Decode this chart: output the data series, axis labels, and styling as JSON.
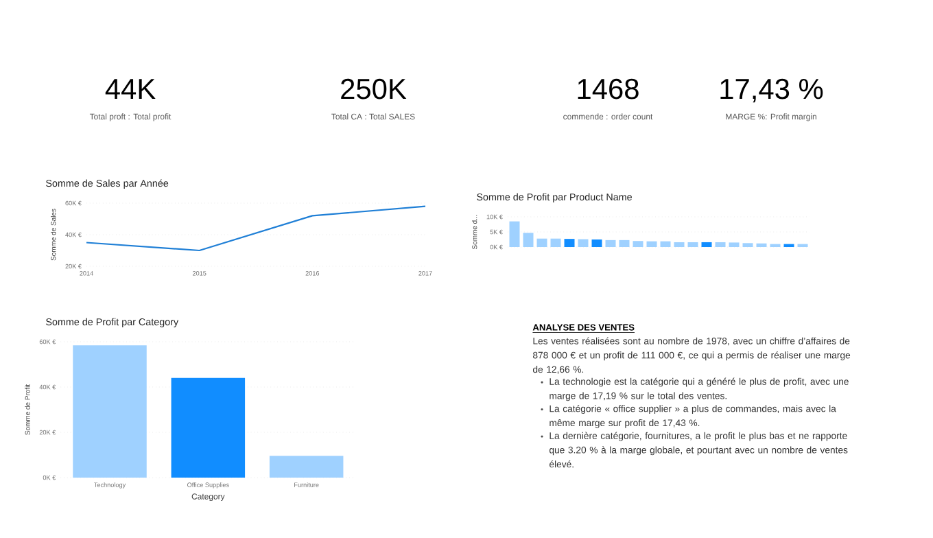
{
  "chart_data": [
    {
      "type": "other",
      "annotations": [
        "44K",
        "Total proft : Total profit",
        "250K",
        "Total CA : Total SALES",
        "1468",
        "commende : order count",
        "17,43 %",
        "MARGE %: Profit margin"
      ]
    },
    {
      "type": "line",
      "title": "Somme de Sales par Année",
      "ylabel": "Somme de Sales",
      "categories": [
        "2014",
        "2015",
        "2016",
        "2017"
      ],
      "values": [
        35000,
        30000,
        52000,
        58000
      ],
      "color": "#1f7fd6",
      "ylim": [
        20000,
        60000
      ],
      "yticks": [
        {
          "value": 20000,
          "label": "20K €"
        },
        {
          "value": 40000,
          "label": "40K €"
        },
        {
          "value": 60000,
          "label": "60K €"
        }
      ],
      "grid": "y",
      "marker": "none",
      "line_style": "solid"
    },
    {
      "type": "bar",
      "title": "Somme de Profit par Product Name",
      "ylabel": "Somme d...",
      "categories": [
        null,
        null,
        null,
        null,
        null,
        null,
        null,
        null,
        null,
        null,
        null,
        null,
        null,
        null,
        null,
        null,
        null,
        null,
        null,
        null,
        null,
        null
      ],
      "values": [
        8500,
        4700,
        2800,
        2800,
        2700,
        2600,
        2500,
        2300,
        2300,
        2000,
        1900,
        1900,
        1600,
        1600,
        1600,
        1600,
        1500,
        1300,
        1200,
        1000,
        1000,
        1000
      ],
      "colors": [
        "#9fd1ff",
        "#9fd1ff",
        "#9fd1ff",
        "#9fd1ff",
        "#118dff",
        "#9fd1ff",
        "#118dff",
        "#9fd1ff",
        "#9fd1ff",
        "#9fd1ff",
        "#9fd1ff",
        "#9fd1ff",
        "#9fd1ff",
        "#9fd1ff",
        "#118dff",
        "#9fd1ff",
        "#9fd1ff",
        "#9fd1ff",
        "#9fd1ff",
        "#9fd1ff",
        "#118dff",
        "#9fd1ff"
      ],
      "ylim": [
        0,
        10000
      ],
      "yticks": [
        {
          "value": 0,
          "label": "0K €"
        },
        {
          "value": 5000,
          "label": "5K €"
        },
        {
          "value": 10000,
          "label": "10K €"
        }
      ],
      "grid": "y"
    },
    {
      "type": "bar",
      "title": "Somme de Profit par Category",
      "xlabel": "Category",
      "ylabel": "Somme de Profit",
      "categories": [
        "Technology",
        "Office Supplies",
        "Furniture"
      ],
      "values": [
        58400,
        44000,
        9600
      ],
      "colors": [
        "#9fd1ff",
        "#118dff",
        "#9fd1ff"
      ],
      "ylim": [
        0,
        60000
      ],
      "yticks": [
        {
          "value": 0,
          "label": "0K €"
        },
        {
          "value": 20000,
          "label": "20K €"
        },
        {
          "value": 40000,
          "label": "40K €"
        },
        {
          "value": 60000,
          "label": "60K €"
        }
      ],
      "grid": "y"
    },
    {
      "type": "other",
      "title": "ANALYSE DES VENTES",
      "annotations": [
        "Les ventes réalisées sont au nombre de 1978, avec un chiffre d’affaires de 878 000 € et un profit de 111 000 €, ce qui a permis de réaliser une marge de 12,66 %.",
        "La technologie est la catégorie qui a généré le plus de profit, avec une marge de 17,19 % sur le total des ventes.",
        "La catégorie « office supplier » a plus de commandes, mais avec la même marge sur profit de 17,43 %.",
        "La dernière catégorie, fournitures, a le profit le plus bas et ne rapporte que 3.20 % à la marge globale, et pourtant avec un nombre de ventes élevé."
      ]
    }
  ]
}
